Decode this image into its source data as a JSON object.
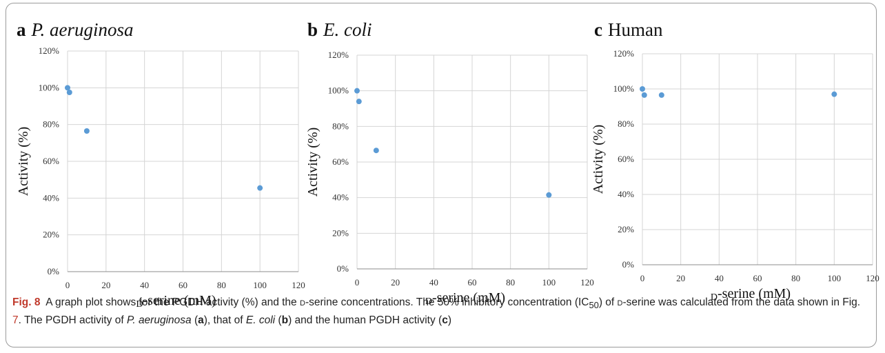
{
  "panels": [
    {
      "letter": "a",
      "organism": "P. aeruginosa",
      "italic": true,
      "chart_data": {
        "type": "scatter",
        "xlabel_prefix": "D",
        "xlabel": "-serine (mM)",
        "ylabel": "Activity (%)",
        "xlim": [
          0,
          120
        ],
        "ylim": [
          0,
          120
        ],
        "xticks": [
          "0",
          "20",
          "40",
          "60",
          "80",
          "100",
          "120"
        ],
        "yticks": [
          "0%",
          "20%",
          "40%",
          "60%",
          "80%",
          "100%",
          "120%"
        ],
        "grid": true,
        "color": "#5b9bd5",
        "points": [
          {
            "x": 0,
            "y": 100
          },
          {
            "x": 1,
            "y": 97.5
          },
          {
            "x": 10,
            "y": 76.5
          },
          {
            "x": 100,
            "y": 45.5
          }
        ]
      }
    },
    {
      "letter": "b",
      "organism": "E. coli",
      "italic": true,
      "chart_data": {
        "type": "scatter",
        "xlabel_prefix": "D",
        "xlabel": "-serine (mM)",
        "ylabel": "Activity (%)",
        "xlim": [
          0,
          120
        ],
        "ylim": [
          0,
          120
        ],
        "xticks": [
          "0",
          "20",
          "40",
          "60",
          "80",
          "100",
          "120"
        ],
        "yticks": [
          "0%",
          "20%",
          "40%",
          "60%",
          "80%",
          "100%",
          "120%"
        ],
        "grid": true,
        "color": "#5b9bd5",
        "points": [
          {
            "x": 0,
            "y": 100
          },
          {
            "x": 1,
            "y": 94
          },
          {
            "x": 10,
            "y": 66.5
          },
          {
            "x": 100,
            "y": 41.5
          }
        ]
      }
    },
    {
      "letter": "c",
      "organism": "Human",
      "italic": false,
      "chart_data": {
        "type": "scatter",
        "xlabel_prefix": "D",
        "xlabel": "-serine (mM)",
        "ylabel": "Activity (%)",
        "xlim": [
          0,
          120
        ],
        "ylim": [
          0,
          120
        ],
        "xticks": [
          "0",
          "20",
          "40",
          "60",
          "80",
          "100",
          "120"
        ],
        "yticks": [
          "0%",
          "20%",
          "40%",
          "60%",
          "80%",
          "100%",
          "120%"
        ],
        "grid": true,
        "color": "#5b9bd5",
        "points": [
          {
            "x": 0,
            "y": 100
          },
          {
            "x": 1,
            "y": 96.5
          },
          {
            "x": 10,
            "y": 96.5
          },
          {
            "x": 100,
            "y": 97
          }
        ]
      }
    }
  ],
  "caption": {
    "fig_label": "Fig. 8",
    "s1": "A graph plot shows for the PGDH activity (%) and the ",
    "d1": "d",
    "s2": "-serine concentrations. The 50% inhibitory concentration (IC",
    "sub50": "50",
    "s3": ") of ",
    "d2": "d",
    "s4": "-serine was calculated from the data shown in Fig. ",
    "ref": "7",
    "s5": ". The PGDH activity of ",
    "pa": "P. aeruginosa",
    "s6": " (",
    "la": "a",
    "s7": "), that of ",
    "ec": "E. coli",
    "s8": " (",
    "lb": "b",
    "s9": ") and the human PGDH activity (",
    "lc": "c",
    "s10": ")"
  }
}
